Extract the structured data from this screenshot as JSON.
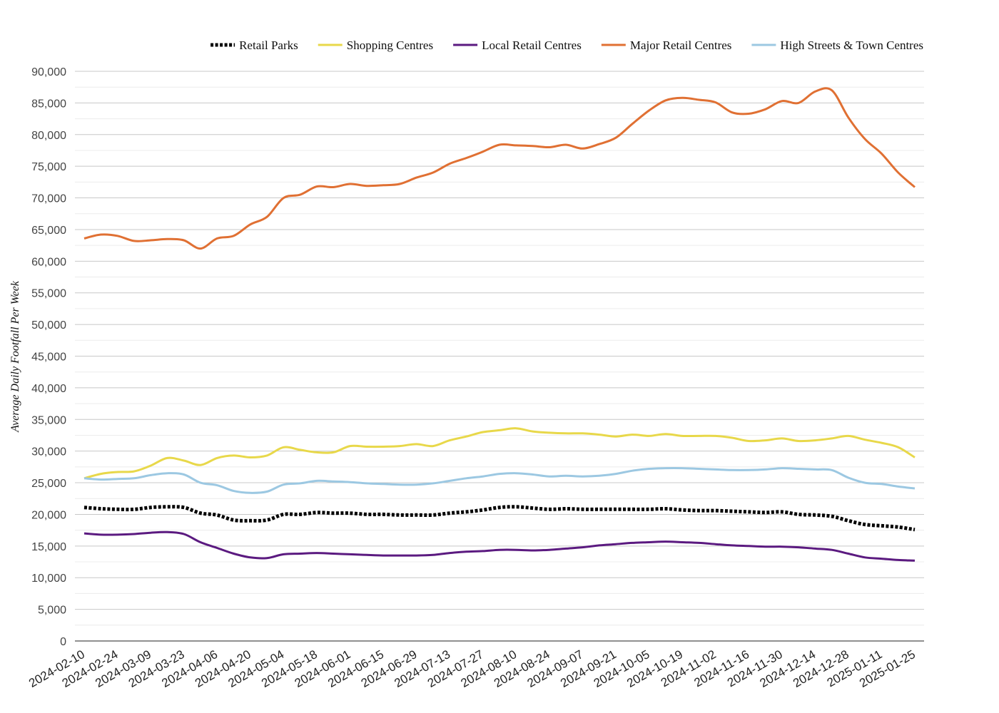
{
  "chart_data": {
    "type": "line",
    "title": "",
    "xlabel": "",
    "ylabel": "Average Daily Footfall Per Week",
    "ylim": [
      0,
      90000
    ],
    "ytick_step": 5000,
    "grid": true,
    "legend_position": "top-right",
    "x_tick_labels": [
      "2024-02-10",
      "2024-02-24",
      "2024-03-09",
      "2024-03-23",
      "2024-04-06",
      "2024-04-20",
      "2024-05-04",
      "2024-05-18",
      "2024-06-01",
      "2024-06-15",
      "2024-06-29",
      "2024-07-13",
      "2024-07-27",
      "2024-08-10",
      "2024-08-24",
      "2024-09-07",
      "2024-09-21",
      "2024-10-05",
      "2024-10-19",
      "2024-11-02",
      "2024-11-16",
      "2024-11-30",
      "2024-12-14",
      "2024-12-28",
      "2025-01-11",
      "2025-01-25"
    ],
    "x": [
      "2024-02-10",
      "2024-02-17",
      "2024-02-24",
      "2024-03-02",
      "2024-03-09",
      "2024-03-16",
      "2024-03-23",
      "2024-03-30",
      "2024-04-06",
      "2024-04-13",
      "2024-04-20",
      "2024-04-27",
      "2024-05-04",
      "2024-05-11",
      "2024-05-18",
      "2024-05-25",
      "2024-06-01",
      "2024-06-08",
      "2024-06-15",
      "2024-06-22",
      "2024-06-29",
      "2024-07-06",
      "2024-07-13",
      "2024-07-20",
      "2024-07-27",
      "2024-08-03",
      "2024-08-10",
      "2024-08-17",
      "2024-08-24",
      "2024-08-31",
      "2024-09-07",
      "2024-09-14",
      "2024-09-21",
      "2024-09-28",
      "2024-10-05",
      "2024-10-12",
      "2024-10-19",
      "2024-10-26",
      "2024-11-02",
      "2024-11-09",
      "2024-11-16",
      "2024-11-23",
      "2024-11-30",
      "2024-12-07",
      "2024-12-14",
      "2024-12-21",
      "2024-12-28",
      "2025-01-04",
      "2025-01-11",
      "2025-01-18",
      "2025-01-25"
    ],
    "series": [
      {
        "name": "Retail Parks",
        "color": "#000000",
        "dashed": true,
        "values": [
          21100,
          20900,
          20800,
          20800,
          21100,
          21200,
          21100,
          20200,
          19900,
          19100,
          19000,
          19100,
          20000,
          20000,
          20300,
          20200,
          20200,
          20000,
          20000,
          19900,
          19900,
          19900,
          20200,
          20400,
          20700,
          21100,
          21200,
          21000,
          20800,
          20900,
          20800,
          20800,
          20800,
          20800,
          20800,
          20900,
          20700,
          20600,
          20600,
          20500,
          20400,
          20300,
          20400,
          20000,
          19900,
          19700,
          19000,
          18400,
          18200,
          18000,
          17600
        ]
      },
      {
        "name": "Shopping Centres",
        "color": "#E8D84A",
        "dashed": false,
        "values": [
          25700,
          26400,
          26700,
          26800,
          27700,
          28900,
          28500,
          27800,
          28900,
          29300,
          29000,
          29300,
          30600,
          30200,
          29800,
          29800,
          30800,
          30700,
          30700,
          30800,
          31100,
          30800,
          31700,
          32300,
          33000,
          33300,
          33600,
          33100,
          32900,
          32800,
          32800,
          32600,
          32300,
          32600,
          32400,
          32700,
          32400,
          32400,
          32400,
          32100,
          31600,
          31700,
          32000,
          31600,
          31700,
          32000,
          32400,
          31800,
          31300,
          30600,
          29000
        ]
      },
      {
        "name": "Local Retail Centres",
        "color": "#5B1A80",
        "dashed": false,
        "values": [
          17000,
          16800,
          16800,
          16900,
          17100,
          17200,
          16900,
          15600,
          14700,
          13800,
          13200,
          13100,
          13700,
          13800,
          13900,
          13800,
          13700,
          13600,
          13500,
          13500,
          13500,
          13600,
          13900,
          14100,
          14200,
          14400,
          14400,
          14300,
          14400,
          14600,
          14800,
          15100,
          15300,
          15500,
          15600,
          15700,
          15600,
          15500,
          15300,
          15100,
          15000,
          14900,
          14900,
          14800,
          14600,
          14400,
          13800,
          13200,
          13000,
          12800,
          12700
        ]
      },
      {
        "name": "Major Retail Centres",
        "color": "#E07033",
        "dashed": false,
        "values": [
          63600,
          64200,
          64000,
          63200,
          63300,
          63500,
          63300,
          62000,
          63600,
          64000,
          65800,
          67000,
          70000,
          70500,
          71800,
          71700,
          72200,
          71900,
          72000,
          72200,
          73200,
          74000,
          75400,
          76300,
          77300,
          78400,
          78300,
          78200,
          78000,
          78400,
          77800,
          78500,
          79500,
          81700,
          83800,
          85400,
          85800,
          85500,
          85100,
          83500,
          83300,
          84000,
          85300,
          85000,
          86800,
          87000,
          82700,
          79300,
          77000,
          74000,
          71700
        ]
      },
      {
        "name": "High Streets & Town Centres",
        "color": "#9CC8E2",
        "dashed": false,
        "values": [
          25700,
          25500,
          25600,
          25700,
          26200,
          26500,
          26300,
          25000,
          24600,
          23700,
          23400,
          23600,
          24700,
          24900,
          25300,
          25200,
          25100,
          24900,
          24800,
          24700,
          24700,
          24900,
          25300,
          25700,
          26000,
          26400,
          26500,
          26300,
          26000,
          26100,
          26000,
          26100,
          26400,
          26900,
          27200,
          27300,
          27300,
          27200,
          27100,
          27000,
          27000,
          27100,
          27300,
          27200,
          27100,
          27000,
          25800,
          25000,
          24800,
          24400,
          24100
        ]
      }
    ]
  }
}
